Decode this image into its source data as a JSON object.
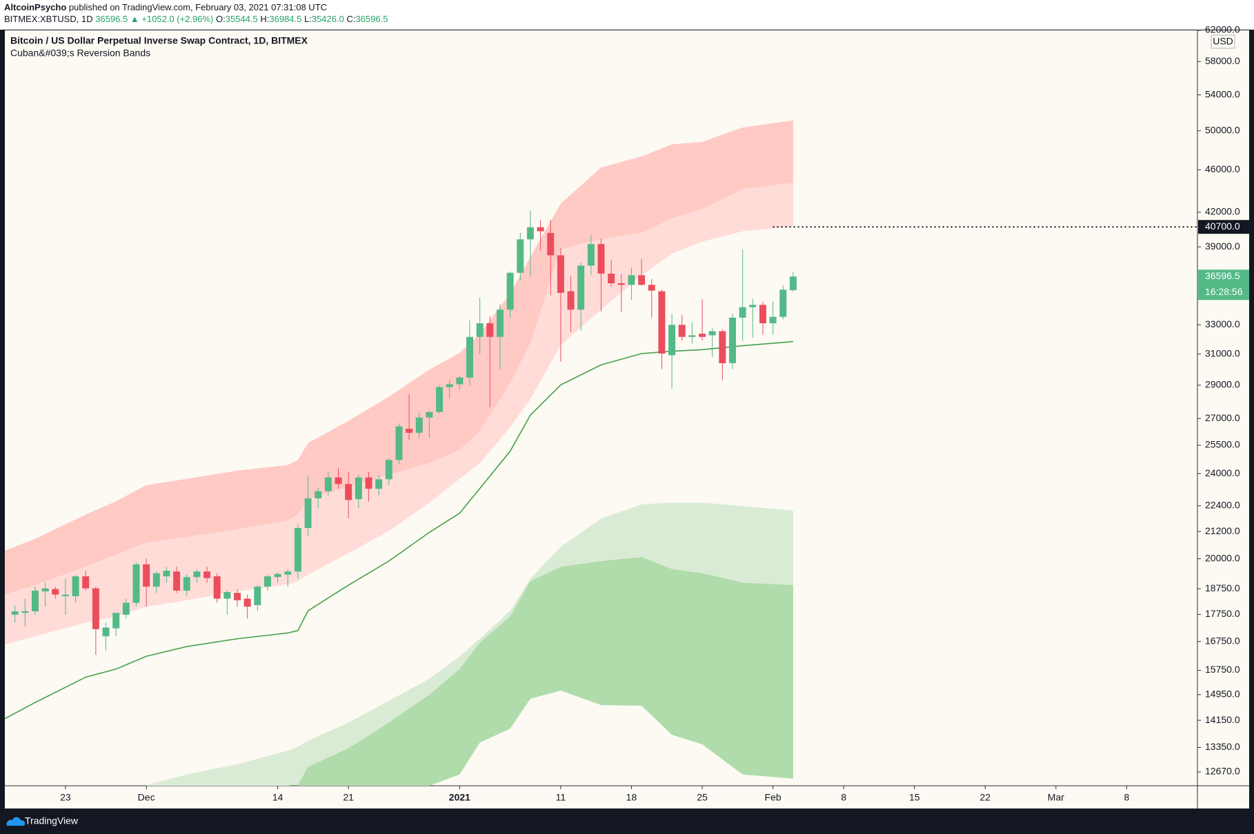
{
  "header": {
    "author": "AltcoinPsycho",
    "published": "published on TradingView.com, February 03, 2021 07:31:08 UTC",
    "symbol": "BITMEX:XBTUSD, 1D",
    "price": "36596.5",
    "change": "▲ +1052.0 (+2.96%)",
    "ohlc": [
      {
        "key": "O:",
        "value": "35544.5"
      },
      {
        "key": "H:",
        "value": "36984.5"
      },
      {
        "key": "L:",
        "value": "35426.0"
      },
      {
        "key": "C:",
        "value": "36596.5"
      }
    ]
  },
  "footer": {
    "brand": "TradingView"
  },
  "chart_data": {
    "type": "candlestick",
    "title": "Bitcoin / US Dollar Perpetual Inverse Swap Contract, 1D, BITMEX",
    "subtitle": "Cuban&#039;s Reversion Bands",
    "currency": "USD",
    "log": true,
    "grid": false,
    "up_color": "#53b987",
    "down_color": "#eb4d5c",
    "xlim": [
      "2020-11-17",
      "2021-03-15"
    ],
    "ylim": [
      12300,
      62000
    ],
    "xticks": [
      {
        "value": "2020-11-23",
        "label": "23"
      },
      {
        "value": "2020-12-01",
        "label": "Dec"
      },
      {
        "value": "2020-12-14",
        "label": "14"
      },
      {
        "value": "2020-12-21",
        "label": "21"
      },
      {
        "value": "2021-01-01",
        "label": "2021",
        "bold": true
      },
      {
        "value": "2021-01-11",
        "label": "11"
      },
      {
        "value": "2021-01-18",
        "label": "18"
      },
      {
        "value": "2021-01-25",
        "label": "25"
      },
      {
        "value": "2021-02-01",
        "label": "Feb"
      },
      {
        "value": "2021-02-08",
        "label": "8"
      },
      {
        "value": "2021-02-15",
        "label": "15"
      },
      {
        "value": "2021-02-22",
        "label": "22"
      },
      {
        "value": "2021-03-01",
        "label": "Mar"
      },
      {
        "value": "2021-03-08",
        "label": "8"
      }
    ],
    "yticks": [
      {
        "value": 62000,
        "label": "62000.0"
      },
      {
        "value": 58000,
        "label": "58000.0"
      },
      {
        "value": 54000,
        "label": "54000.0"
      },
      {
        "value": 50000,
        "label": "50000.0"
      },
      {
        "value": 46000,
        "label": "46000.0"
      },
      {
        "value": 42000,
        "label": "42000.0"
      },
      {
        "value": 39000,
        "label": "39000.0"
      },
      {
        "value": 33000,
        "label": "33000.0"
      },
      {
        "value": 31000,
        "label": "31000.0"
      },
      {
        "value": 29000,
        "label": "29000.0"
      },
      {
        "value": 27000,
        "label": "27000.0"
      },
      {
        "value": 25500,
        "label": "25500.0"
      },
      {
        "value": 24000,
        "label": "24000.0"
      },
      {
        "value": 22400,
        "label": "22400.0"
      },
      {
        "value": 21200,
        "label": "21200.0"
      },
      {
        "value": 20000,
        "label": "20000.0"
      },
      {
        "value": 18750,
        "label": "18750.0"
      },
      {
        "value": 17750,
        "label": "17750.0"
      },
      {
        "value": 16750,
        "label": "16750.0"
      },
      {
        "value": 15750,
        "label": "15750.0"
      },
      {
        "value": 14950,
        "label": "14950.0"
      },
      {
        "value": 14150,
        "label": "14150.0"
      },
      {
        "value": 13350,
        "label": "13350.0"
      },
      {
        "value": 12670,
        "label": "12670.0"
      }
    ],
    "x": [
      "2020-11-18",
      "2020-11-19",
      "2020-11-20",
      "2020-11-21",
      "2020-11-22",
      "2020-11-23",
      "2020-11-24",
      "2020-11-25",
      "2020-11-26",
      "2020-11-27",
      "2020-11-28",
      "2020-11-29",
      "2020-11-30",
      "2020-12-01",
      "2020-12-02",
      "2020-12-03",
      "2020-12-04",
      "2020-12-05",
      "2020-12-06",
      "2020-12-07",
      "2020-12-08",
      "2020-12-09",
      "2020-12-10",
      "2020-12-11",
      "2020-12-12",
      "2020-12-13",
      "2020-12-14",
      "2020-12-15",
      "2020-12-16",
      "2020-12-17",
      "2020-12-18",
      "2020-12-19",
      "2020-12-20",
      "2020-12-21",
      "2020-12-22",
      "2020-12-23",
      "2020-12-24",
      "2020-12-25",
      "2020-12-26",
      "2020-12-27",
      "2020-12-28",
      "2020-12-29",
      "2020-12-30",
      "2020-12-31",
      "2021-01-01",
      "2021-01-02",
      "2021-01-03",
      "2021-01-04",
      "2021-01-05",
      "2021-01-06",
      "2021-01-07",
      "2021-01-08",
      "2021-01-09",
      "2021-01-10",
      "2021-01-11",
      "2021-01-12",
      "2021-01-13",
      "2021-01-14",
      "2021-01-15",
      "2021-01-16",
      "2021-01-17",
      "2021-01-18",
      "2021-01-19",
      "2021-01-20",
      "2021-01-21",
      "2021-01-22",
      "2021-01-23",
      "2021-01-24",
      "2021-01-25",
      "2021-01-26",
      "2021-01-27",
      "2021-01-28",
      "2021-01-29",
      "2021-01-30",
      "2021-01-31",
      "2021-02-01",
      "2021-02-02",
      "2021-02-03"
    ],
    "open": [
      17740,
      17810,
      17870,
      18650,
      18740,
      18460,
      18460,
      19260,
      18770,
      16940,
      17230,
      17740,
      18200,
      19760,
      18840,
      19260,
      19460,
      18680,
      19230,
      19460,
      19260,
      18360,
      18590,
      18360,
      18110,
      18840,
      19230,
      19330,
      19460,
      21360,
      22760,
      23110,
      23800,
      23470,
      22720,
      23800,
      23230,
      23710,
      24710,
      26420,
      26190,
      27060,
      27380,
      28880,
      29060,
      29480,
      32160,
      33110,
      32160,
      34090,
      36890,
      39630,
      40670,
      40180,
      38300,
      35460,
      34090,
      37460,
      39230,
      36820,
      36070,
      35950,
      36700,
      35950,
      35460,
      30920,
      33000,
      32160,
      32380,
      32270,
      32550,
      30400,
      33510,
      34270,
      34440,
      33110,
      33570,
      35544.5
    ],
    "high": [
      18110,
      18360,
      18840,
      19000,
      18840,
      19160,
      19330,
      19490,
      18840,
      17440,
      17590,
      18360,
      19830,
      20000,
      19460,
      19660,
      19660,
      19330,
      19560,
      19660,
      19390,
      18700,
      18740,
      18520,
      18900,
      19330,
      19420,
      19560,
      21540,
      23880,
      23300,
      24100,
      24290,
      24100,
      23950,
      24100,
      23900,
      24800,
      26720,
      28430,
      27350,
      27450,
      28990,
      29300,
      29600,
      33300,
      34980,
      33600,
      34500,
      37000,
      40200,
      42160,
      41300,
      41300,
      38900,
      36600,
      37700,
      39980,
      39700,
      37900,
      36800,
      37300,
      37980,
      36400,
      35600,
      33800,
      33700,
      33200,
      34860,
      32800,
      32700,
      33800,
      38760,
      34900,
      34700,
      34700,
      35900,
      36984.5
    ],
    "low": [
      17440,
      17290,
      17740,
      18050,
      18360,
      17740,
      18200,
      18680,
      16280,
      16430,
      16940,
      17590,
      18050,
      18050,
      18590,
      19000,
      18590,
      18460,
      19000,
      19000,
      18200,
      17740,
      18050,
      17590,
      17870,
      18680,
      19000,
      18840,
      19160,
      21000,
      22300,
      22900,
      23230,
      21810,
      22300,
      22600,
      22900,
      23400,
      24500,
      25800,
      25900,
      25900,
      27300,
      28200,
      28700,
      29000,
      31000,
      27670,
      30000,
      33500,
      36300,
      36600,
      38700,
      35160,
      30500,
      32500,
      32600,
      36700,
      33970,
      35800,
      33900,
      34800,
      35900,
      33500,
      30030,
      28780,
      31900,
      31700,
      31900,
      30800,
      29300,
      30000,
      31900,
      32100,
      32300,
      32300,
      33400,
      35426
    ],
    "close": [
      17870,
      17870,
      18680,
      18770,
      18520,
      18520,
      19260,
      18770,
      17200,
      17260,
      17810,
      18200,
      19760,
      18840,
      19390,
      19490,
      18680,
      19230,
      19460,
      19190,
      18360,
      18620,
      18300,
      18050,
      18840,
      19260,
      19360,
      19460,
      21360,
      22760,
      23110,
      23800,
      23470,
      22680,
      23800,
      23230,
      23710,
      24710,
      26550,
      26190,
      27060,
      27380,
      28880,
      29060,
      29480,
      32160,
      33110,
      32160,
      34090,
      36890,
      39630,
      40670,
      40320,
      38300,
      35340,
      34090,
      37460,
      39230,
      36820,
      36070,
      35950,
      36700,
      35950,
      35510,
      31030,
      33000,
      32160,
      32270,
      32160,
      32550,
      30400,
      33510,
      34270,
      34440,
      33110,
      33570,
      35580,
      36596.5
    ],
    "bands": {
      "x": [
        "2020-11-17",
        "2020-11-20",
        "2020-11-25",
        "2020-11-28",
        "2020-12-01",
        "2020-12-05",
        "2020-12-10",
        "2020-12-15",
        "2020-12-16",
        "2020-12-17",
        "2020-12-21",
        "2020-12-25",
        "2020-12-29",
        "2021-01-01",
        "2021-01-03",
        "2021-01-06",
        "2021-01-08",
        "2021-01-11",
        "2021-01-15",
        "2021-01-19",
        "2021-01-22",
        "2021-01-25",
        "2021-01-29",
        "2021-02-03"
      ],
      "basis": {
        "color": "#43a047",
        "values": [
          14200,
          14700,
          15520,
          15790,
          16230,
          16570,
          16850,
          17060,
          17150,
          17890,
          18900,
          19900,
          21160,
          22050,
          23250,
          25180,
          27200,
          29020,
          30290,
          31030,
          31190,
          31290,
          31560,
          31840
        ]
      },
      "upper": [
        {
          "fill": "#ffc9c4",
          "values": [
            20350,
            20870,
            21980,
            22620,
            23410,
            23730,
            24150,
            24440,
            24710,
            25620,
            26870,
            28290,
            29980,
            31080,
            32380,
            35280,
            38170,
            42780,
            46210,
            47330,
            48570,
            48820,
            50350,
            51130
          ]
        },
        {
          "fill": "#ffdcd8",
          "values": [
            18520,
            18900,
            19660,
            20170,
            20700,
            20950,
            21310,
            21710,
            21980,
            22740,
            23330,
            23940,
            24540,
            25260,
            26280,
            29120,
            31730,
            38830,
            39630,
            40180,
            41440,
            42270,
            44120,
            44730
          ]
        },
        {
          "values": [
            16650,
            16940,
            17440,
            17680,
            18050,
            18300,
            18650,
            18930,
            19060,
            19330,
            20240,
            21230,
            22550,
            23730,
            24540,
            26510,
            28140,
            31620,
            34090,
            36700,
            38430,
            39440,
            40320,
            40730
          ]
        }
      ],
      "lower": [
        {
          "fill": "#d9ebd4",
          "values": [
            null,
            null,
            null,
            null,
            12320,
            12600,
            12880,
            13260,
            13370,
            13540,
            14080,
            14750,
            15470,
            16230,
            16850,
            17890,
            19160,
            20520,
            21790,
            22470,
            22550,
            22550,
            22390,
            22160
          ]
        },
        {
          "fill": "#b0dbab",
          "values": [
            null,
            null,
            null,
            null,
            null,
            null,
            null,
            null,
            12320,
            12810,
            13330,
            14080,
            14950,
            15790,
            16710,
            17680,
            19060,
            19660,
            19900,
            20070,
            19560,
            19390,
            19000,
            18900
          ]
        },
        {
          "values": [
            null,
            null,
            null,
            null,
            null,
            null,
            null,
            null,
            null,
            null,
            null,
            null,
            null,
            12600,
            13490,
            13900,
            14820,
            15080,
            14620,
            14600,
            13720,
            13440,
            12600,
            12490
          ]
        }
      ]
    },
    "level": {
      "value": 40700,
      "label": "40700.0",
      "from": "2021-02-01"
    },
    "price_label": 36596.5,
    "countdown": "16:28:56"
  }
}
